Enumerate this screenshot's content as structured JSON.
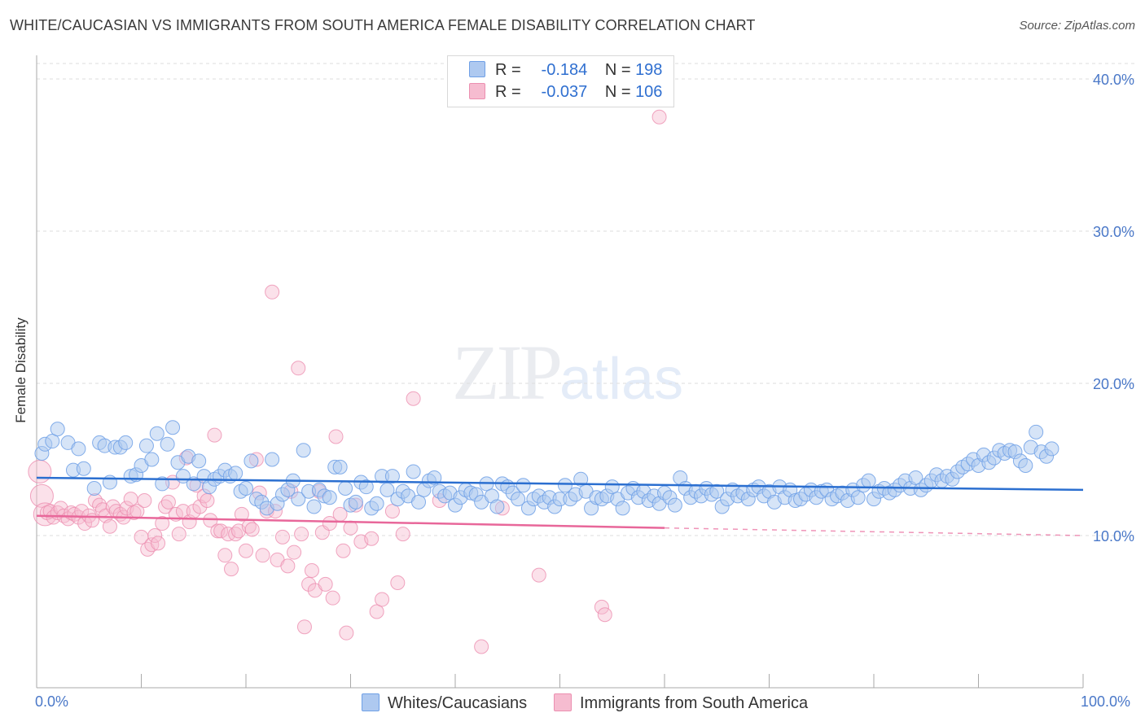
{
  "title": "WHITE/CAUCASIAN VS IMMIGRANTS FROM SOUTH AMERICA FEMALE DISABILITY CORRELATION CHART",
  "source": "Source: ZipAtlas.com",
  "watermark": {
    "zip": "ZIP",
    "atlas": "atlas"
  },
  "legend": {
    "rows": [
      {
        "r_label": "R =",
        "r_value": "-0.184",
        "n_label": "N =",
        "n_value": "198"
      },
      {
        "r_label": "R =",
        "r_value": "-0.037",
        "n_label": "N =",
        "n_value": "106"
      }
    ]
  },
  "colors": {
    "blue": "#6fa0e6",
    "blue_fill": "#aec9f0",
    "blue_line": "#2b6fd0",
    "pink": "#ec8fb0",
    "pink_fill": "#f6bcd0",
    "pink_line": "#e8679a",
    "grid": "#dedede",
    "axis": "#aaaaaa"
  },
  "chart_data": {
    "type": "scatter",
    "title": "WHITE/CAUCASIAN VS IMMIGRANTS FROM SOUTH AMERICA FEMALE DISABILITY CORRELATION CHART",
    "xlabel": "",
    "ylabel": "Female Disability",
    "xlim": [
      0,
      100
    ],
    "ylim": [
      0,
      42
    ],
    "x_tick_labels": [
      "0.0%",
      "100.0%"
    ],
    "y_ticks": [
      10,
      20,
      30,
      40
    ],
    "y_tick_labels": [
      "10.0%",
      "20.0%",
      "30.0%",
      "40.0%"
    ],
    "series": [
      {
        "name": "Whites/Caucasians",
        "r": -0.184,
        "n": 198,
        "trend": {
          "x0": 0,
          "y0": 13.8,
          "x1": 100,
          "y1": 13.0
        },
        "points": [
          [
            0.5,
            15.4
          ],
          [
            0.8,
            16.0
          ],
          [
            1.5,
            16.2
          ],
          [
            2,
            17.0
          ],
          [
            3,
            16.1
          ],
          [
            3.5,
            14.3
          ],
          [
            4,
            15.7
          ],
          [
            4.5,
            14.4
          ],
          [
            5.5,
            13.1
          ],
          [
            6,
            16.1
          ],
          [
            6.5,
            15.9
          ],
          [
            7,
            13.5
          ],
          [
            7.5,
            15.8
          ],
          [
            8,
            15.8
          ],
          [
            8.5,
            16.1
          ],
          [
            9,
            13.9
          ],
          [
            9.5,
            14.0
          ],
          [
            10,
            14.6
          ],
          [
            10.5,
            15.9
          ],
          [
            11,
            15.0
          ],
          [
            11.5,
            16.7
          ],
          [
            12,
            13.4
          ],
          [
            12.5,
            16.0
          ],
          [
            13,
            17.1
          ],
          [
            13.5,
            14.8
          ],
          [
            14,
            13.9
          ],
          [
            14.5,
            15.2
          ],
          [
            15,
            13.4
          ],
          [
            15.5,
            14.9
          ],
          [
            16,
            13.9
          ],
          [
            16.5,
            13.2
          ],
          [
            17,
            13.7
          ],
          [
            17.5,
            13.9
          ],
          [
            18,
            14.3
          ],
          [
            18.5,
            13.9
          ],
          [
            19,
            14.1
          ],
          [
            19.5,
            12.9
          ],
          [
            20,
            13.1
          ],
          [
            20.5,
            14.9
          ],
          [
            21,
            12.4
          ],
          [
            21.5,
            12.2
          ],
          [
            22,
            11.8
          ],
          [
            22.5,
            15.0
          ],
          [
            23,
            12.1
          ],
          [
            23.5,
            12.7
          ],
          [
            24,
            13.0
          ],
          [
            24.5,
            13.6
          ],
          [
            25,
            12.4
          ],
          [
            25.5,
            15.6
          ],
          [
            26,
            12.9
          ],
          [
            26.5,
            11.9
          ],
          [
            27,
            13.0
          ],
          [
            27.5,
            12.6
          ],
          [
            28,
            12.5
          ],
          [
            28.5,
            14.5
          ],
          [
            29,
            14.5
          ],
          [
            29.5,
            13.1
          ],
          [
            30,
            12.0
          ],
          [
            30.5,
            12.2
          ],
          [
            31,
            13.5
          ],
          [
            31.5,
            13.2
          ],
          [
            32,
            11.8
          ],
          [
            32.5,
            12.1
          ],
          [
            33,
            13.9
          ],
          [
            33.5,
            13.0
          ],
          [
            34,
            13.9
          ],
          [
            34.5,
            12.4
          ],
          [
            35,
            12.9
          ],
          [
            35.5,
            12.6
          ],
          [
            36,
            14.2
          ],
          [
            36.5,
            12.2
          ],
          [
            37,
            13.0
          ],
          [
            37.5,
            13.6
          ],
          [
            38,
            13.8
          ],
          [
            38.5,
            12.9
          ],
          [
            39,
            12.6
          ],
          [
            39.5,
            12.8
          ],
          [
            40,
            12.0
          ],
          [
            40.5,
            12.5
          ],
          [
            41,
            13.0
          ],
          [
            41.5,
            12.8
          ],
          [
            42,
            12.7
          ],
          [
            42.5,
            12.2
          ],
          [
            43,
            13.4
          ],
          [
            43.5,
            12.6
          ],
          [
            44,
            11.9
          ],
          [
            44.5,
            13.4
          ],
          [
            45,
            13.2
          ],
          [
            45.5,
            12.8
          ],
          [
            46,
            12.4
          ],
          [
            46.5,
            13.3
          ],
          [
            47,
            11.8
          ],
          [
            47.5,
            12.4
          ],
          [
            48,
            12.6
          ],
          [
            48.5,
            12.2
          ],
          [
            49,
            12.5
          ],
          [
            49.5,
            11.9
          ],
          [
            50,
            12.4
          ],
          [
            50.5,
            13.3
          ],
          [
            51,
            12.4
          ],
          [
            51.5,
            12.7
          ],
          [
            52,
            13.7
          ],
          [
            52.5,
            12.9
          ],
          [
            53,
            11.8
          ],
          [
            53.5,
            12.5
          ],
          [
            54,
            12.4
          ],
          [
            54.5,
            12.6
          ],
          [
            55,
            13.2
          ],
          [
            55.5,
            12.4
          ],
          [
            56,
            11.8
          ],
          [
            56.5,
            12.8
          ],
          [
            57,
            13.1
          ],
          [
            57.5,
            12.5
          ],
          [
            58,
            12.9
          ],
          [
            58.5,
            12.3
          ],
          [
            59,
            12.6
          ],
          [
            59.5,
            12.1
          ],
          [
            60,
            12.8
          ],
          [
            60.5,
            12.5
          ],
          [
            61,
            12.0
          ],
          [
            61.5,
            13.8
          ],
          [
            62,
            13.1
          ],
          [
            62.5,
            12.5
          ],
          [
            63,
            12.9
          ],
          [
            63.5,
            12.6
          ],
          [
            64,
            13.1
          ],
          [
            64.5,
            12.7
          ],
          [
            65,
            12.9
          ],
          [
            65.5,
            11.9
          ],
          [
            66,
            12.4
          ],
          [
            66.5,
            13.0
          ],
          [
            67,
            12.6
          ],
          [
            67.5,
            12.8
          ],
          [
            68,
            12.4
          ],
          [
            68.5,
            13.0
          ],
          [
            69,
            13.2
          ],
          [
            69.5,
            12.6
          ],
          [
            70,
            12.9
          ],
          [
            70.5,
            12.2
          ],
          [
            71,
            13.2
          ],
          [
            71.5,
            12.5
          ],
          [
            72,
            13.0
          ],
          [
            72.5,
            12.3
          ],
          [
            73,
            12.4
          ],
          [
            73.5,
            12.7
          ],
          [
            74,
            13.0
          ],
          [
            74.5,
            12.5
          ],
          [
            75,
            12.9
          ],
          [
            75.5,
            13.0
          ],
          [
            76,
            12.4
          ],
          [
            76.5,
            12.6
          ],
          [
            77,
            12.8
          ],
          [
            77.5,
            12.3
          ],
          [
            78,
            13.0
          ],
          [
            78.5,
            12.5
          ],
          [
            79,
            13.3
          ],
          [
            79.5,
            13.6
          ],
          [
            80,
            12.4
          ],
          [
            80.5,
            12.9
          ],
          [
            81,
            13.1
          ],
          [
            81.5,
            12.8
          ],
          [
            82,
            13.0
          ],
          [
            82.5,
            13.3
          ],
          [
            83,
            13.6
          ],
          [
            83.5,
            13.1
          ],
          [
            84,
            13.8
          ],
          [
            84.5,
            13.0
          ],
          [
            85,
            13.3
          ],
          [
            85.5,
            13.6
          ],
          [
            86,
            14.0
          ],
          [
            86.5,
            13.6
          ],
          [
            87,
            13.9
          ],
          [
            87.5,
            13.7
          ],
          [
            88,
            14.2
          ],
          [
            88.5,
            14.5
          ],
          [
            89,
            14.7
          ],
          [
            89.5,
            15.0
          ],
          [
            90,
            14.6
          ],
          [
            90.5,
            15.3
          ],
          [
            91,
            14.8
          ],
          [
            91.5,
            15.1
          ],
          [
            92,
            15.6
          ],
          [
            92.5,
            15.4
          ],
          [
            93,
            15.6
          ],
          [
            93.5,
            15.5
          ],
          [
            94,
            14.9
          ],
          [
            94.5,
            14.6
          ],
          [
            95,
            15.8
          ],
          [
            95.5,
            16.8
          ],
          [
            96,
            15.5
          ],
          [
            96.5,
            15.2
          ],
          [
            97,
            15.7
          ]
        ]
      },
      {
        "name": "Immigrants from South America",
        "r": -0.037,
        "n": 106,
        "trend": {
          "x0": 0,
          "y0": 11.3,
          "x1": 60,
          "y1": 10.5
        },
        "trend_dashed": {
          "x0": 60,
          "y0": 10.5,
          "x1": 100,
          "y1": 10.0
        },
        "points": [
          [
            0.3,
            14.2
          ],
          [
            0.5,
            12.6
          ],
          [
            0.8,
            11.4
          ],
          [
            1,
            11.5
          ],
          [
            1.3,
            11.6
          ],
          [
            1.6,
            11.2
          ],
          [
            2,
            11.5
          ],
          [
            2.3,
            11.8
          ],
          [
            2.6,
            11.3
          ],
          [
            3,
            11.1
          ],
          [
            3.3,
            11.5
          ],
          [
            3.6,
            11.4
          ],
          [
            4,
            11.2
          ],
          [
            4.3,
            11.6
          ],
          [
            4.6,
            10.8
          ],
          [
            5,
            11.3
          ],
          [
            5.3,
            11.0
          ],
          [
            5.6,
            12.3
          ],
          [
            6,
            12.0
          ],
          [
            6.3,
            11.7
          ],
          [
            6.6,
            11.3
          ],
          [
            7,
            10.6
          ],
          [
            7.3,
            11.9
          ],
          [
            7.6,
            11.6
          ],
          [
            8,
            11.4
          ],
          [
            8.3,
            11.2
          ],
          [
            8.6,
            11.8
          ],
          [
            9,
            12.4
          ],
          [
            9.3,
            11.5
          ],
          [
            9.6,
            11.6
          ],
          [
            10,
            9.9
          ],
          [
            10.3,
            12.3
          ],
          [
            10.6,
            9.1
          ],
          [
            11,
            9.4
          ],
          [
            11.3,
            10.0
          ],
          [
            11.6,
            9.5
          ],
          [
            12,
            10.8
          ],
          [
            12.3,
            11.9
          ],
          [
            12.6,
            12.2
          ],
          [
            13,
            13.5
          ],
          [
            13.3,
            11.4
          ],
          [
            13.6,
            10.1
          ],
          [
            14,
            11.6
          ],
          [
            14.3,
            15.1
          ],
          [
            14.6,
            10.9
          ],
          [
            15,
            11.6
          ],
          [
            15.3,
            13.3
          ],
          [
            15.6,
            11.9
          ],
          [
            16,
            12.6
          ],
          [
            16.3,
            12.3
          ],
          [
            16.6,
            11.0
          ],
          [
            17,
            16.6
          ],
          [
            17.3,
            10.3
          ],
          [
            17.6,
            10.3
          ],
          [
            18,
            8.7
          ],
          [
            18.3,
            10.1
          ],
          [
            18.6,
            7.8
          ],
          [
            19,
            10.1
          ],
          [
            19.3,
            10.3
          ],
          [
            19.6,
            11.4
          ],
          [
            20,
            9.0
          ],
          [
            20.3,
            10.6
          ],
          [
            20.6,
            10.4
          ],
          [
            21,
            15.0
          ],
          [
            21.3,
            12.8
          ],
          [
            21.6,
            8.7
          ],
          [
            22,
            11.6
          ],
          [
            22.5,
            26.0
          ],
          [
            22.8,
            11.6
          ],
          [
            23,
            8.4
          ],
          [
            23.5,
            9.9
          ],
          [
            24,
            8.0
          ],
          [
            24.3,
            12.9
          ],
          [
            24.6,
            8.9
          ],
          [
            25,
            21.0
          ],
          [
            25.3,
            10.1
          ],
          [
            25.6,
            4.0
          ],
          [
            26,
            6.8
          ],
          [
            26.3,
            7.7
          ],
          [
            26.6,
            6.4
          ],
          [
            27,
            12.9
          ],
          [
            27.3,
            10.2
          ],
          [
            27.6,
            6.8
          ],
          [
            28,
            10.8
          ],
          [
            28.3,
            5.9
          ],
          [
            28.6,
            16.5
          ],
          [
            29,
            11.4
          ],
          [
            29.3,
            9.0
          ],
          [
            29.6,
            3.6
          ],
          [
            30,
            10.5
          ],
          [
            30.5,
            12.0
          ],
          [
            31,
            9.6
          ],
          [
            32,
            9.8
          ],
          [
            32.5,
            5.0
          ],
          [
            33,
            5.8
          ],
          [
            34,
            11.6
          ],
          [
            34.5,
            6.9
          ],
          [
            35,
            10.1
          ],
          [
            36,
            19.0
          ],
          [
            42.5,
            2.7
          ],
          [
            48,
            7.4
          ],
          [
            54,
            5.3
          ],
          [
            54.3,
            4.8
          ],
          [
            59.5,
            37.5
          ],
          [
            44.5,
            11.8
          ],
          [
            38.5,
            12.3
          ]
        ]
      }
    ]
  },
  "axis_labels": {
    "x_left": "0.0%",
    "x_right": "100.0%",
    "ylabel": "Female Disability"
  },
  "bottom_legend": [
    "Whites/Caucasians",
    "Immigrants from South America"
  ]
}
